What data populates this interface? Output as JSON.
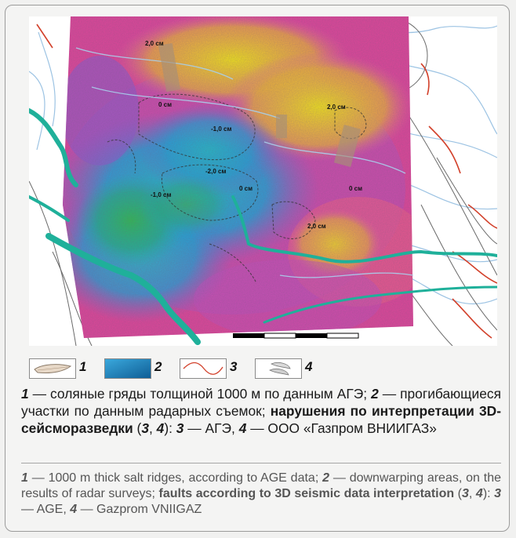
{
  "map": {
    "contour_labels": [
      "2,0 см",
      "0 см",
      "-1,0 см",
      "2,0 см",
      "-2,0 см",
      "-1,0 см",
      "0 см",
      "0 см",
      "2,0 см"
    ],
    "colors": {
      "uplift_yellow": "#f2e21a",
      "uplift_magenta": "#e03a9c",
      "subsidence_blue": "#1aa9d6",
      "subsidence_green": "#18b27a",
      "river": "#1fb09a",
      "fault_agez": "#d2402a",
      "fault_vniigaz": "#9fc8e6"
    }
  },
  "legend": [
    {
      "number": "1",
      "icon": "salt-ridge-icon"
    },
    {
      "number": "2",
      "icon": "subsidence-area-icon"
    },
    {
      "number": "3",
      "icon": "fault-line-icon"
    },
    {
      "number": "4",
      "icon": "fault-zone-icon"
    }
  ],
  "caption_ru": {
    "n1": "1",
    "t1": " — соляные гряды толщиной 1000 м по данным АГЭ; ",
    "n2": "2",
    "t2": " — прогибающиеся участки по данным радарных съемок; ",
    "bold": "нарушения по интерпретации 3D-сейсморазведки",
    "paren_open": " (",
    "n3": "3",
    "comma": ", ",
    "n4": "4",
    "paren_close": "): ",
    "n5": "3",
    "t3": " — АГЭ, ",
    "n6": "4",
    "t4": " — ООО «Газпром ВНИИГАЗ»"
  },
  "caption_en": {
    "n1": "1",
    "t1": " — 1000 m thick salt ridges, according to AGE data; ",
    "n2": "2",
    "t2": " — downwarping areas, on the results of radar surveys; ",
    "bold": "faults according to 3D seismic data interpretation",
    "paren_open": " (",
    "n3": "3",
    "comma": ", ",
    "n4": "4",
    "paren_close": "): ",
    "n5": "3",
    "t3": " — AGE, ",
    "n6": "4",
    "t4": " — Gazprom VNIIGAZ"
  }
}
